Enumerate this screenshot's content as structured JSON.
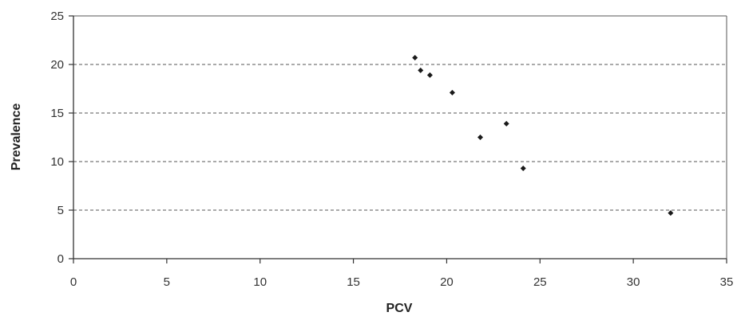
{
  "chart_data": {
    "type": "scatter",
    "title": "",
    "xlabel": "PCV",
    "ylabel": "Prevalence",
    "xlim": [
      0,
      35
    ],
    "ylim": [
      0,
      25
    ],
    "x_ticks": [
      0,
      5,
      10,
      15,
      20,
      25,
      30,
      35
    ],
    "y_ticks": [
      0,
      5,
      10,
      15,
      20,
      25
    ],
    "grid": "horizontal dashed",
    "legend": "none",
    "marker_color": "#1a1a1a",
    "points": [
      {
        "x": 18.3,
        "y": 20.7
      },
      {
        "x": 18.6,
        "y": 19.4
      },
      {
        "x": 19.1,
        "y": 18.9
      },
      {
        "x": 20.3,
        "y": 17.1
      },
      {
        "x": 21.8,
        "y": 12.5
      },
      {
        "x": 23.2,
        "y": 13.9
      },
      {
        "x": 24.1,
        "y": 9.3
      },
      {
        "x": 32.0,
        "y": 4.7
      }
    ]
  }
}
